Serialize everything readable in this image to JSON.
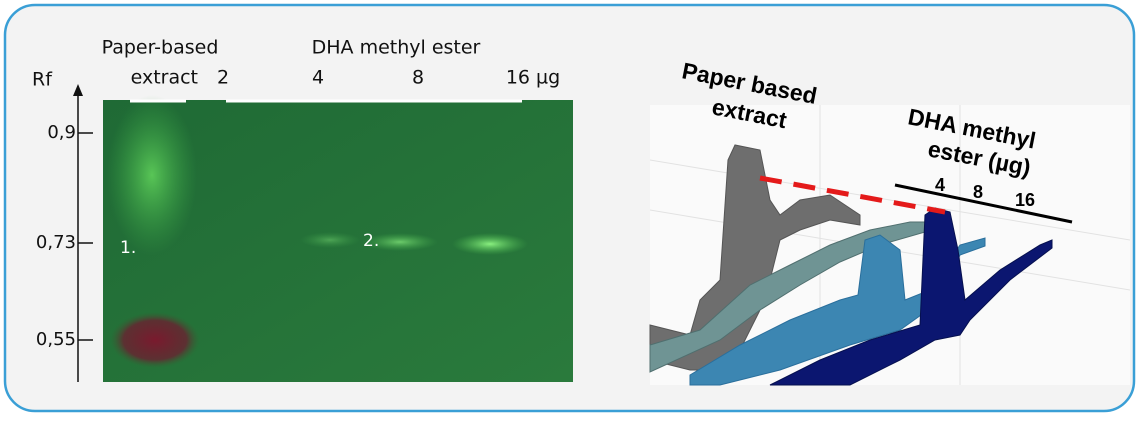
{
  "tlc_plate": {
    "axis_label": "Rf",
    "ticks": [
      "0,9",
      "0,73",
      "0,55"
    ],
    "extract_header": [
      "Paper-based",
      "extract"
    ],
    "standard_header": "DHA methyl ester",
    "lane_labels": [
      "2",
      "4",
      "8",
      "16 µg"
    ],
    "spot_labels": [
      "1.",
      "2."
    ]
  },
  "densitogram": {
    "extract_label": [
      "Paper based",
      "extract"
    ],
    "standard_label": [
      "DHA methyl",
      "ester (µg)"
    ],
    "lane_labels": [
      "4",
      "8",
      "16"
    ]
  }
}
